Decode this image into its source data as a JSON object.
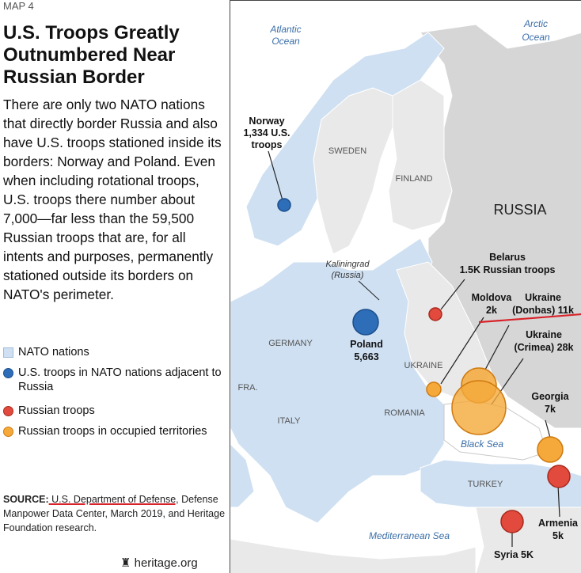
{
  "map_label": "MAP 4",
  "title": "U.S. Troops Greatly Outnumbered Near Russian Border",
  "body": "There are only two NATO nations that directly border Russia and also have U.S. troops stationed inside its borders: Norway and Poland. Even when including rotational troops, U.S. troops there number about 7,000—far less than the 59,500 Russian troops that are, for all intents and purposes, permanently stationed outside its borders on NATO's perimeter.",
  "legend": [
    {
      "label": "NATO nations",
      "color": "#cfe0f2"
    },
    {
      "label": "U.S. troops in NATO nations adjacent to Russia",
      "color": "#2e6db8"
    },
    {
      "label": "Russian troops",
      "color": "#e14a3d"
    },
    {
      "label": "Russian troops in occupied territories",
      "color": "#f4a93a"
    }
  ],
  "source": {
    "prefix": "SOURCE:",
    "highlighted": " U.S. Department of Defense,",
    "rest": " Defense Manpower Data Center, March 2019, and Heritage Foundation research."
  },
  "credit": "heritage.org",
  "water": {
    "atlantic": [
      "Atlantic",
      "Ocean"
    ],
    "arctic": [
      "Arctic",
      "Ocean"
    ],
    "black_sea": "Black Sea",
    "mediterranean": "Mediterranean Sea"
  },
  "countries": {
    "russia": "RUSSIA",
    "sweden": "SWEDEN",
    "finland": "FINLAND",
    "germany": "GERMANY",
    "ukraine": "UKRAINE",
    "fra": "FRA.",
    "romania": "ROMANIA",
    "italy": "ITALY",
    "turkey": "TURKEY",
    "kaliningrad": [
      "Kaliningrad",
      "(Russia)"
    ]
  },
  "callouts": {
    "norway": [
      "Norway",
      "1,334 U.S.",
      "troops"
    ],
    "poland": [
      "Poland",
      "5,663"
    ],
    "belarus": [
      "Belarus",
      "1.5K Russian troops"
    ],
    "moldova": [
      "Moldova",
      "2k"
    ],
    "ukraine_donbas": [
      "Ukraine",
      "(Donbas) 11k"
    ],
    "ukraine_crimea": [
      "Ukraine",
      "(Crimea) 28k"
    ],
    "georgia": [
      "Georgia",
      "7k"
    ],
    "armenia": [
      "Armenia",
      "5k"
    ],
    "syria": "Syria 5K"
  },
  "colors": {
    "nato": "#cfe0f2",
    "nonnato": "#e9e9e9",
    "russia": "#d6d6d6",
    "water": "#ffffff",
    "blue_dot": "#2e6db8",
    "red_dot": "#e14a3d",
    "orange_dot": "#f4a93a",
    "annotation": "#d8232a"
  }
}
